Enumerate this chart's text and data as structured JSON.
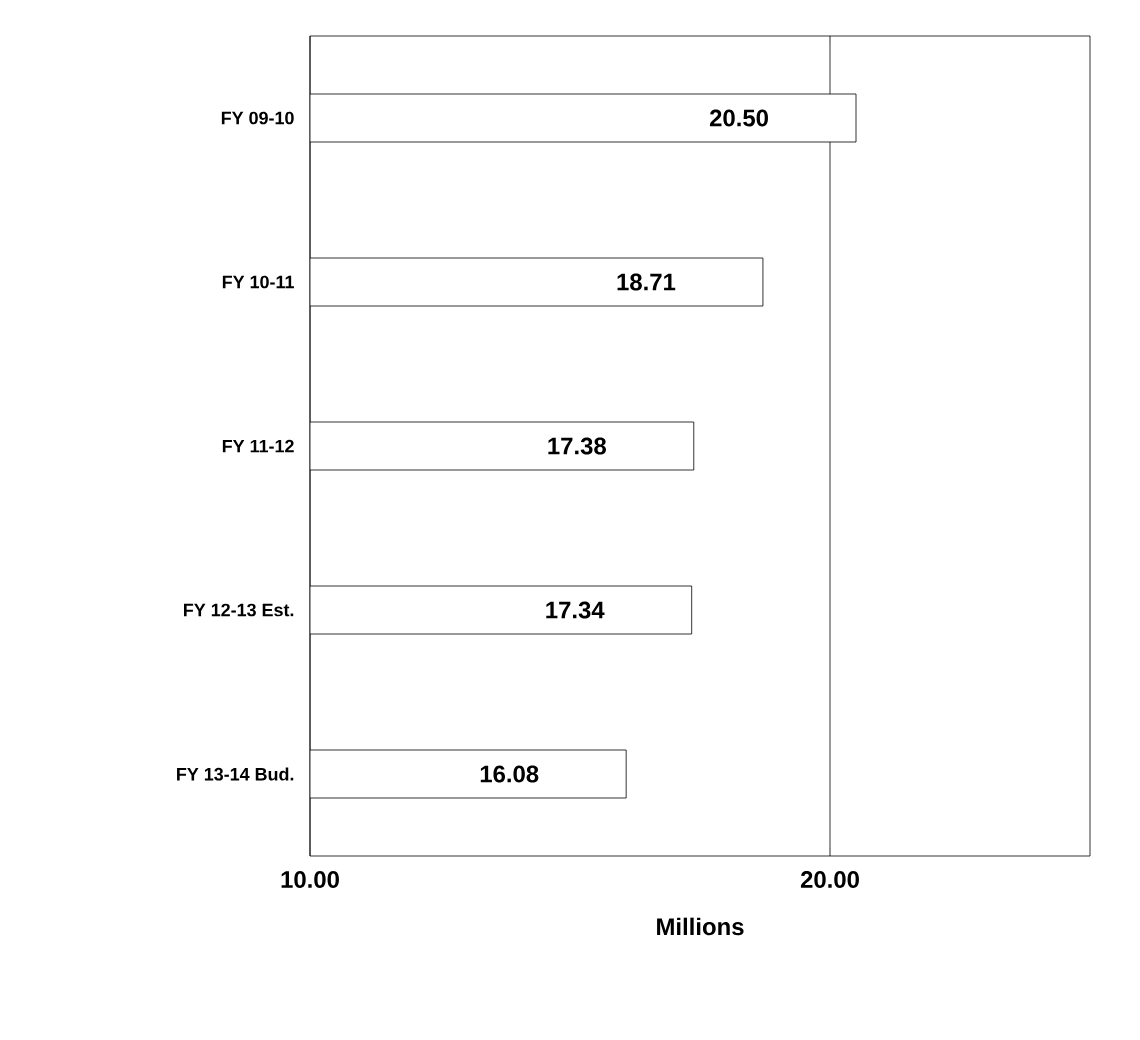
{
  "chart_data": {
    "type": "bar",
    "orientation": "horizontal",
    "xlabel": "Millions",
    "categories": [
      "FY 09-10",
      "FY 10-11",
      "FY 11-12",
      "FY 12-13 Est.",
      "FY 13-14 Bud."
    ],
    "values": [
      20.5,
      18.71,
      17.38,
      17.34,
      16.08
    ],
    "value_labels": [
      "20.50",
      "18.71",
      "17.38",
      "17.34",
      "16.08"
    ],
    "color": "#ffffff",
    "xlim": [
      10,
      25
    ],
    "xticks": [
      {
        "value": 10,
        "label": "10.00"
      },
      {
        "value": 20,
        "label": "20.00"
      }
    ],
    "grid": "x"
  }
}
